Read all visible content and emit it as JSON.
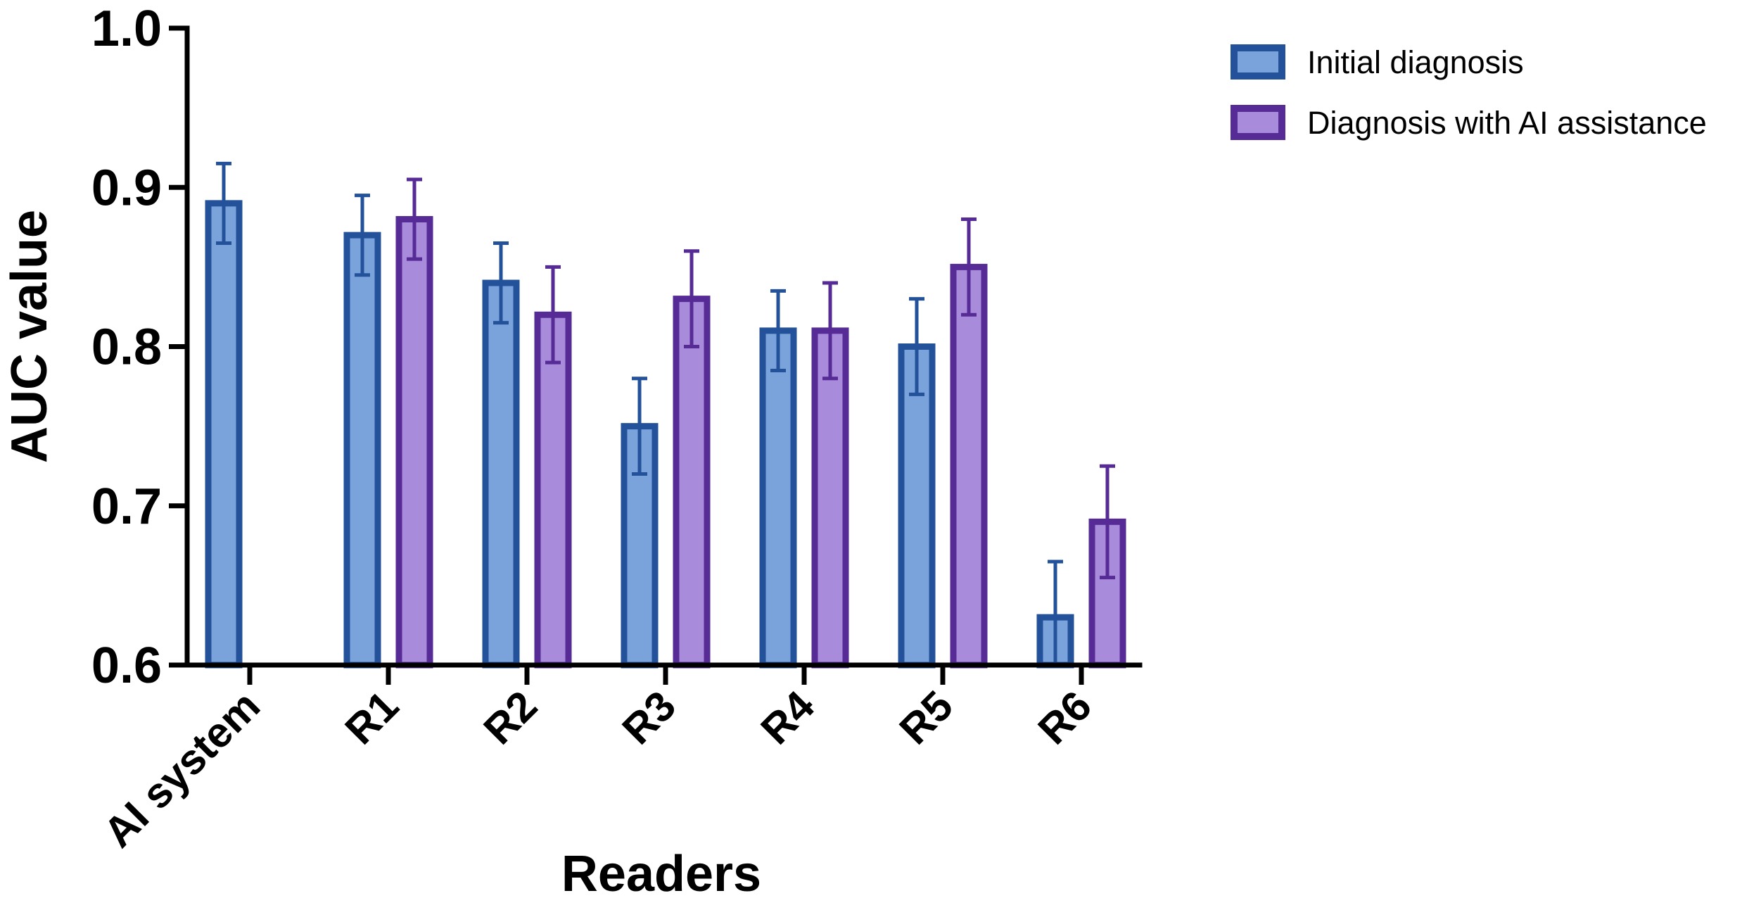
{
  "chart_data": {
    "type": "bar",
    "title": "",
    "xlabel": "Readers",
    "ylabel": "AUC value",
    "ylim": [
      0.6,
      1.0
    ],
    "yticks": [
      "0.6",
      "0.7",
      "0.8",
      "0.9",
      "1.0"
    ],
    "categories": [
      "AI system",
      "R1",
      "R2",
      "R3",
      "R4",
      "R5",
      "R6"
    ],
    "legend_position": "top-right",
    "series": [
      {
        "name": "Initial diagnosis",
        "fill": "#7BA3DB",
        "stroke": "#23529B",
        "values": [
          0.89,
          0.87,
          0.84,
          0.75,
          0.81,
          0.8,
          0.63
        ],
        "error_upper": [
          0.915,
          0.895,
          0.865,
          0.78,
          0.835,
          0.83,
          0.665
        ],
        "error_lower": [
          0.865,
          0.845,
          0.815,
          0.72,
          0.785,
          0.77,
          0.6
        ]
      },
      {
        "name": "Diagnosis with AI assistance",
        "fill": "#A98BDC",
        "stroke": "#562B96",
        "values": [
          null,
          0.88,
          0.82,
          0.83,
          0.81,
          0.85,
          0.69
        ],
        "error_upper": [
          null,
          0.905,
          0.85,
          0.86,
          0.84,
          0.88,
          0.725
        ],
        "error_lower": [
          null,
          0.855,
          0.79,
          0.8,
          0.78,
          0.82,
          0.655
        ]
      }
    ]
  }
}
